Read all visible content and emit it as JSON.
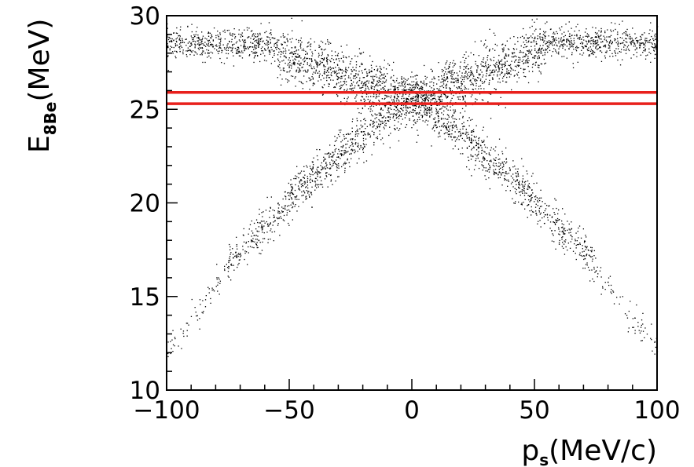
{
  "chart_data": {
    "type": "scatter",
    "title": "",
    "xlabel": {
      "main": "p",
      "sub": "s",
      "unit": "(MeV/c)"
    },
    "ylabel": {
      "main": "E",
      "sub": "8Be",
      "unit": "(MeV)"
    },
    "xlim": [
      -100,
      100
    ],
    "ylim": [
      10,
      30
    ],
    "xticks": [
      -100,
      -50,
      0,
      50,
      100
    ],
    "xtick_labels": [
      "−100",
      "−50",
      "0",
      "50",
      "100"
    ],
    "yticks": [
      10,
      15,
      20,
      25,
      30
    ],
    "ytick_labels": [
      "10",
      "15",
      "20",
      "25",
      "30"
    ],
    "grid": false,
    "marker_color": "#000000",
    "band": {
      "lower": 25.3,
      "upper": 25.9,
      "color": "#e8201c"
    },
    "point_density_regions": [
      {
        "x_range": [
          -100,
          -55
        ],
        "y_center": 28.5,
        "spread": 0.4,
        "count": 500
      },
      {
        "x_range": [
          -55,
          0
        ],
        "y_center_at_start": 28.0,
        "y_center_at_end": 25.5,
        "spread": 0.7,
        "count": 900
      },
      {
        "x_range": [
          0,
          55
        ],
        "y_center_at_start": 25.5,
        "y_center_at_end": 28.3,
        "spread": 0.7,
        "count": 900
      },
      {
        "x_range": [
          55,
          100
        ],
        "y_center": 28.6,
        "spread": 0.4,
        "count": 500
      },
      {
        "x_range": [
          -50,
          0
        ],
        "y_center_at_start": 20.3,
        "y_center_at_end": 25.8,
        "spread": 0.6,
        "count": 600
      },
      {
        "x_range": [
          0,
          50
        ],
        "y_center_at_start": 25.8,
        "y_center_at_end": 20.3,
        "spread": 0.6,
        "count": 600
      },
      {
        "x_range": [
          -75,
          -50
        ],
        "y_center_at_start": 16.8,
        "y_center_at_end": 20.0,
        "spread": 0.5,
        "count": 220
      },
      {
        "x_range": [
          50,
          75
        ],
        "y_center_at_start": 20.0,
        "y_center_at_end": 16.8,
        "spread": 0.5,
        "count": 220
      },
      {
        "x_range": [
          -100,
          -75
        ],
        "y_center_at_start": 12.0,
        "y_center_at_end": 16.5,
        "spread": 0.4,
        "count": 70
      },
      {
        "x_range": [
          75,
          100
        ],
        "y_center_at_start": 16.5,
        "y_center_at_end": 12.0,
        "spread": 0.4,
        "count": 70
      }
    ]
  }
}
